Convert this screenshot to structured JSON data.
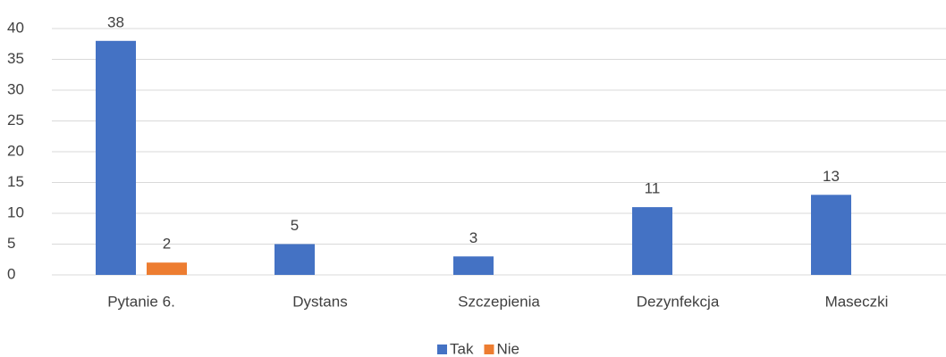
{
  "chart_data": {
    "type": "bar",
    "categories": [
      "Pytanie 6.",
      "Dystans",
      "Szczepienia",
      "Dezynfekcja",
      "Maseczki"
    ],
    "series": [
      {
        "name": "Tak",
        "color": "#4472c4",
        "values": [
          38,
          5,
          3,
          11,
          13
        ]
      },
      {
        "name": "Nie",
        "color": "#ed7d31",
        "values": [
          2,
          null,
          null,
          null,
          null
        ]
      }
    ],
    "ylim": [
      0,
      40
    ],
    "yticks": [
      0,
      5,
      10,
      15,
      20,
      25,
      30,
      35,
      40
    ],
    "grid": true,
    "legend": "bottom"
  }
}
